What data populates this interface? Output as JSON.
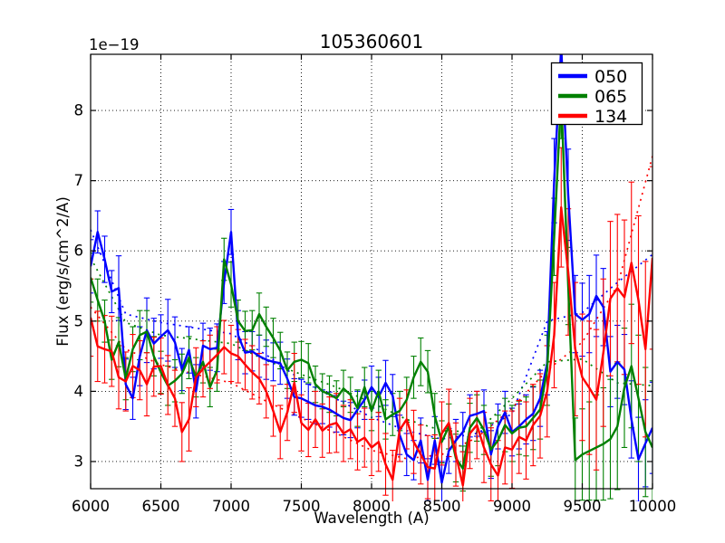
{
  "chart_data": {
    "type": "line",
    "title": "105360601",
    "xlabel": "Wavelength (A)",
    "ylabel": "Flux (erg/s/cm^2/A)",
    "y_offset_label": "1e−19",
    "xlim": [
      6000,
      10000
    ],
    "ylim": [
      2.613,
      8.8
    ],
    "xticks": [
      6000,
      6500,
      7000,
      7500,
      8000,
      8500,
      9000,
      9500,
      10000
    ],
    "yticks": [
      3,
      4,
      5,
      6,
      7,
      8
    ],
    "grid": true,
    "grid_style": "dotted",
    "legend_position": "upper right",
    "x": [
      6000,
      6050,
      6100,
      6150,
      6200,
      6250,
      6300,
      6350,
      6400,
      6450,
      6500,
      6550,
      6600,
      6650,
      6700,
      6750,
      6800,
      6850,
      6900,
      6950,
      7000,
      7050,
      7100,
      7150,
      7200,
      7250,
      7300,
      7350,
      7400,
      7450,
      7500,
      7550,
      7600,
      7650,
      7700,
      7750,
      7800,
      7850,
      7900,
      7950,
      8000,
      8050,
      8100,
      8150,
      8200,
      8250,
      8300,
      8350,
      8400,
      8450,
      8500,
      8550,
      8600,
      8650,
      8700,
      8750,
      8800,
      8850,
      8900,
      8950,
      9000,
      9050,
      9100,
      9150,
      9200,
      9250,
      9300,
      9350,
      9400,
      9450,
      9500,
      9550,
      9600,
      9650,
      9700,
      9750,
      9800,
      9850,
      9900,
      9950,
      10000
    ],
    "fit_x": [
      6000,
      6250,
      6500,
      6750,
      7000,
      7250,
      7500,
      7750,
      8000,
      8250,
      8500,
      8750,
      9000,
      9250,
      9500,
      9750,
      10000
    ],
    "series": [
      {
        "name": "050",
        "color": "#0000ff",
        "values": [
          5.78,
          6.27,
          5.88,
          5.42,
          5.47,
          4.1,
          3.9,
          4.5,
          4.87,
          4.68,
          4.78,
          4.87,
          4.7,
          4.31,
          4.59,
          4.0,
          4.65,
          4.6,
          4.62,
          5.55,
          6.27,
          4.8,
          4.55,
          4.57,
          4.5,
          4.45,
          4.42,
          4.4,
          4.18,
          3.92,
          3.9,
          3.85,
          3.8,
          3.78,
          3.74,
          3.68,
          3.62,
          3.59,
          3.74,
          3.88,
          4.06,
          3.92,
          4.12,
          3.94,
          3.38,
          3.1,
          3.02,
          3.3,
          2.74,
          3.3,
          2.7,
          3.15,
          3.3,
          3.42,
          3.65,
          3.68,
          3.72,
          3.1,
          3.5,
          3.7,
          3.42,
          3.5,
          3.6,
          3.68,
          3.9,
          4.4,
          7.0,
          8.9,
          6.8,
          5.1,
          5.02,
          5.1,
          5.36,
          5.2,
          4.28,
          4.42,
          4.31,
          3.6,
          3.03,
          3.26,
          3.48
        ],
        "errors": [
          0.38,
          0.3,
          0.33,
          0.3,
          0.46,
          0.36,
          0.3,
          0.42,
          0.46,
          0.36,
          0.31,
          0.44,
          0.36,
          0.3,
          0.33,
          0.38,
          0.32,
          0.3,
          0.34,
          0.3,
          0.32,
          0.35,
          0.3,
          0.28,
          0.3,
          0.28,
          0.27,
          0.3,
          0.28,
          0.26,
          0.27,
          0.25,
          0.26,
          0.24,
          0.25,
          0.26,
          0.24,
          0.25,
          0.26,
          0.28,
          0.3,
          0.28,
          0.32,
          0.3,
          0.28,
          0.3,
          0.28,
          0.32,
          0.3,
          0.34,
          0.3,
          0.32,
          0.3,
          0.28,
          0.3,
          0.32,
          0.3,
          0.34,
          0.32,
          0.3,
          0.34,
          0.32,
          0.35,
          0.38,
          0.4,
          0.45,
          0.6,
          0.7,
          0.65,
          0.55,
          0.52,
          0.55,
          0.58,
          0.55,
          0.5,
          0.52,
          0.5,
          0.55,
          0.6,
          0.62,
          0.65
        ],
        "fit_values": [
          6.3,
          5.1,
          4.98,
          4.9,
          4.82,
          4.52,
          4.16,
          3.89,
          3.63,
          3.44,
          3.32,
          3.4,
          3.68,
          5.0,
          5.12,
          5.55,
          5.95
        ]
      },
      {
        "name": "065",
        "color": "#008000",
        "values": [
          5.62,
          5.3,
          5.0,
          4.45,
          4.7,
          4.18,
          4.6,
          4.8,
          4.85,
          4.5,
          4.27,
          4.08,
          4.15,
          4.25,
          4.48,
          4.2,
          4.42,
          4.06,
          4.3,
          5.88,
          5.52,
          5.0,
          4.86,
          4.87,
          5.1,
          4.92,
          4.76,
          4.58,
          4.3,
          4.42,
          4.45,
          4.4,
          4.1,
          4.0,
          3.96,
          3.9,
          4.04,
          3.95,
          3.76,
          4.06,
          3.72,
          4.0,
          3.6,
          3.67,
          3.72,
          3.88,
          4.2,
          4.42,
          4.28,
          3.65,
          3.28,
          3.5,
          3.05,
          2.9,
          3.48,
          3.62,
          3.45,
          3.17,
          3.3,
          3.52,
          3.4,
          3.48,
          3.5,
          3.62,
          3.74,
          4.3,
          6.2,
          8.2,
          5.5,
          3.02,
          3.1,
          3.15,
          3.2,
          3.25,
          3.32,
          3.5,
          4.05,
          4.36,
          3.9,
          3.42,
          3.2
        ],
        "errors": [
          0.35,
          0.3,
          0.3,
          0.28,
          0.35,
          0.3,
          0.32,
          0.35,
          0.3,
          0.28,
          0.3,
          0.28,
          0.3,
          0.28,
          0.3,
          0.28,
          0.3,
          0.28,
          0.3,
          0.3,
          0.32,
          0.3,
          0.28,
          0.28,
          0.3,
          0.28,
          0.28,
          0.26,
          0.26,
          0.28,
          0.26,
          0.28,
          0.26,
          0.25,
          0.26,
          0.25,
          0.26,
          0.25,
          0.26,
          0.28,
          0.28,
          0.3,
          0.28,
          0.3,
          0.28,
          0.32,
          0.3,
          0.34,
          0.3,
          0.32,
          0.3,
          0.32,
          0.34,
          0.32,
          0.35,
          0.33,
          0.35,
          0.38,
          0.36,
          0.38,
          0.4,
          0.38,
          0.42,
          0.45,
          0.42,
          0.5,
          0.55,
          0.6,
          0.55,
          0.6,
          0.65,
          0.7,
          0.75,
          0.8,
          0.85,
          0.9,
          0.85,
          0.88,
          0.9,
          0.92,
          0.95
        ],
        "fit_values": [
          5.9,
          4.98,
          4.8,
          4.74,
          4.68,
          4.44,
          4.24,
          4.06,
          3.84,
          3.6,
          3.44,
          3.42,
          3.9,
          4.42,
          4.46,
          4.12,
          4.08
        ]
      },
      {
        "name": "134",
        "color": "#ff0000",
        "values": [
          5.05,
          4.64,
          4.6,
          4.57,
          4.2,
          4.14,
          4.36,
          4.3,
          4.1,
          4.35,
          4.36,
          4.09,
          3.9,
          3.42,
          3.6,
          4.2,
          4.32,
          4.42,
          4.52,
          4.63,
          4.54,
          4.5,
          4.38,
          4.27,
          4.18,
          4.0,
          3.72,
          3.42,
          3.7,
          4.12,
          3.55,
          3.45,
          3.6,
          3.44,
          3.52,
          3.55,
          3.4,
          3.46,
          3.28,
          3.34,
          3.2,
          3.28,
          2.96,
          2.74,
          3.45,
          3.6,
          3.28,
          3.1,
          2.92,
          2.9,
          3.4,
          3.55,
          3.1,
          2.66,
          3.4,
          3.52,
          3.2,
          2.96,
          2.8,
          3.2,
          3.17,
          3.35,
          3.3,
          3.52,
          3.65,
          4.0,
          4.8,
          6.62,
          5.7,
          4.6,
          4.2,
          4.05,
          3.88,
          4.55,
          5.32,
          5.47,
          5.34,
          5.83,
          5.3,
          4.6,
          5.9
        ],
        "errors": [
          0.55,
          0.5,
          0.48,
          0.5,
          0.45,
          0.42,
          0.45,
          0.42,
          0.45,
          0.42,
          0.4,
          0.42,
          0.4,
          0.42,
          0.45,
          0.42,
          0.4,
          0.38,
          0.4,
          0.38,
          0.4,
          0.38,
          0.36,
          0.38,
          0.36,
          0.38,
          0.36,
          0.38,
          0.4,
          0.42,
          0.4,
          0.38,
          0.4,
          0.38,
          0.4,
          0.42,
          0.4,
          0.42,
          0.4,
          0.42,
          0.4,
          0.42,
          0.44,
          0.42,
          0.45,
          0.42,
          0.45,
          0.42,
          0.45,
          0.48,
          0.45,
          0.48,
          0.45,
          0.48,
          0.5,
          0.48,
          0.5,
          0.52,
          0.5,
          0.52,
          0.55,
          0.52,
          0.55,
          0.58,
          0.6,
          0.65,
          0.75,
          0.85,
          0.9,
          0.95,
          0.9,
          0.95,
          1.0,
          1.05,
          1.1,
          1.05,
          1.1,
          1.15,
          1.2,
          1.25,
          1.3
        ],
        "fit_values": [
          5.2,
          4.6,
          4.38,
          4.24,
          4.12,
          3.86,
          3.62,
          3.4,
          3.16,
          3.04,
          3.1,
          3.34,
          3.76,
          4.3,
          4.7,
          5.5,
          7.35
        ]
      }
    ]
  }
}
